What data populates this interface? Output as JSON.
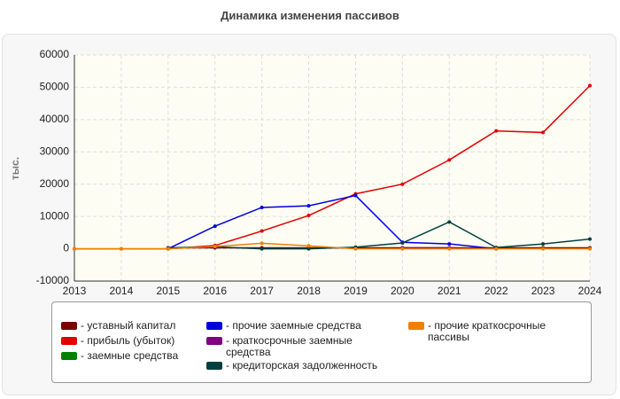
{
  "chart_data": {
    "type": "line",
    "title": "Динамика изменения пассивов",
    "y_label": "тыс.",
    "x": [
      2013,
      2014,
      2015,
      2016,
      2017,
      2018,
      2019,
      2020,
      2021,
      2022,
      2023,
      2024
    ],
    "xlim": [
      2013,
      2024
    ],
    "xticks": [
      2013,
      2014,
      2015,
      2016,
      2017,
      2018,
      2019,
      2020,
      2021,
      2022,
      2023,
      2024
    ],
    "ylim": [
      -10000,
      60000
    ],
    "yticks": [
      -10000,
      0,
      10000,
      20000,
      30000,
      40000,
      50000,
      60000
    ],
    "grid": true,
    "series": [
      {
        "name": "уставный капитал",
        "color": "#7a0000",
        "values": [
          null,
          null,
          300,
          300,
          300,
          300,
          300,
          300,
          300,
          300,
          300,
          300
        ]
      },
      {
        "name": "прибыль (убыток)",
        "color": "#e00000",
        "values": [
          0,
          0,
          0,
          1000,
          5500,
          10300,
          17000,
          20000,
          27500,
          36500,
          36000,
          50500
        ]
      },
      {
        "name": "заемные средства",
        "color": "#008000",
        "values": [
          null,
          null,
          null,
          null,
          null,
          null,
          null,
          null,
          null,
          null,
          null,
          null
        ]
      },
      {
        "name": "прочие заемные средства",
        "color": "#0000e0",
        "values": [
          null,
          null,
          0,
          7000,
          12800,
          13300,
          16500,
          2000,
          1500,
          0,
          null,
          null
        ]
      },
      {
        "name": "краткосрочные заемные средства",
        "color": "#800080",
        "values": [
          null,
          null,
          null,
          null,
          null,
          null,
          null,
          300,
          300,
          0,
          null,
          null
        ]
      },
      {
        "name": "кредиторская задолженность",
        "color": "#004040",
        "values": [
          null,
          null,
          300,
          600,
          0,
          0,
          500,
          1800,
          8300,
          400,
          1500,
          3000
        ]
      },
      {
        "name": "прочие краткосрочные пассивы",
        "color": "#f08000",
        "values": [
          0,
          0,
          0,
          700,
          1700,
          900,
          0,
          0,
          0,
          0,
          0,
          0
        ]
      }
    ]
  }
}
